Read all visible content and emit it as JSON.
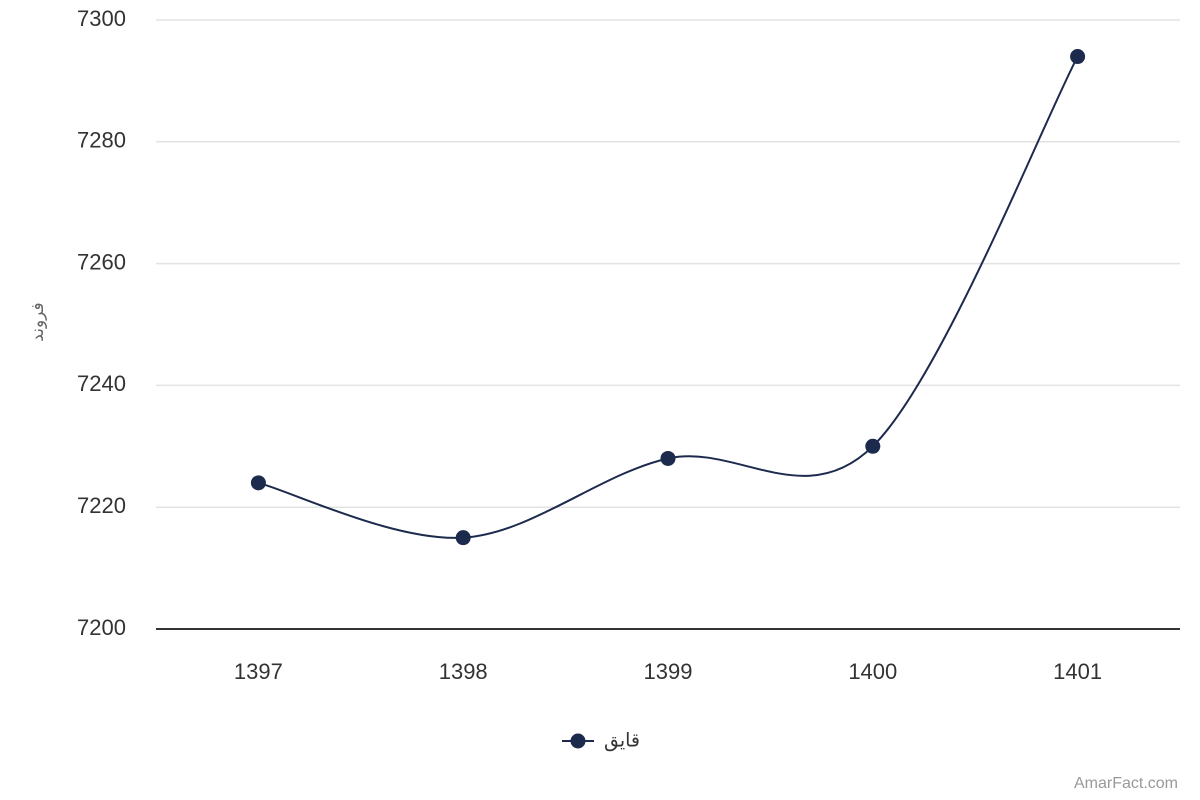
{
  "chart_data": {
    "type": "line",
    "y_label": "فروند",
    "categories": [
      "1397",
      "1398",
      "1399",
      "1400",
      "1401"
    ],
    "series": [
      {
        "name": "قایق",
        "color": "#1c2a4d",
        "values": [
          7224,
          7215,
          7228,
          7230,
          7294
        ]
      }
    ],
    "ylim": [
      7200,
      7300
    ],
    "yticks": [
      7200,
      7220,
      7240,
      7260,
      7280,
      7300
    ],
    "grid": true,
    "smooth": true,
    "legend": "bottom",
    "credit": "AmarFact.com"
  }
}
